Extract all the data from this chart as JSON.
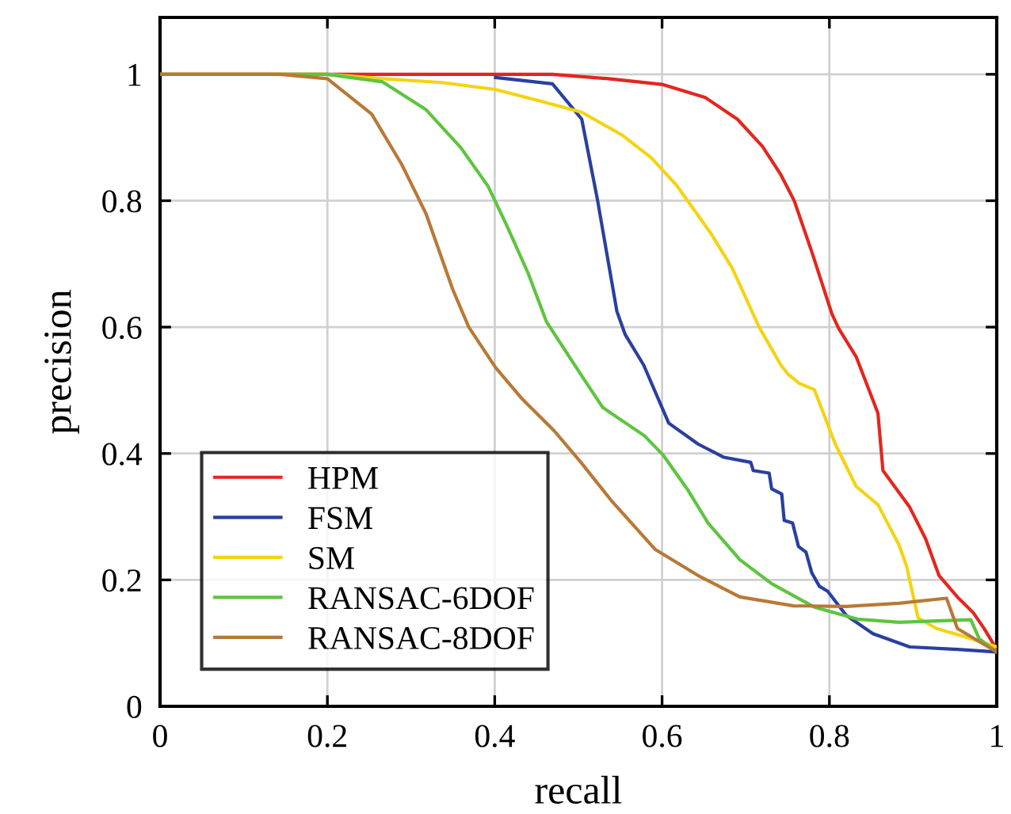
{
  "chart_data": {
    "type": "line",
    "xlabel": "recall",
    "ylabel": "precision",
    "xlim": [
      0,
      1
    ],
    "ylim": [
      0,
      1.09
    ],
    "xticks": [
      0,
      0.2,
      0.4,
      0.6,
      0.8,
      1
    ],
    "yticks": [
      0,
      0.2,
      0.4,
      0.6,
      0.8,
      1
    ],
    "grid": true,
    "legend": "bottom left",
    "marker": "none",
    "line_style": "solid",
    "series": [
      {
        "name": "HPM",
        "color": "#e3261f",
        "x": [
          0,
          0.2,
          0.469,
          0.536,
          0.6,
          0.652,
          0.69,
          0.72,
          0.742,
          0.758,
          0.78,
          0.803,
          0.811,
          0.832,
          0.858,
          0.864,
          0.896,
          0.915,
          0.931,
          0.953,
          0.972,
          0.985,
          1.0
        ],
        "values": [
          1,
          1,
          1.0,
          0.993,
          0.984,
          0.963,
          0.929,
          0.886,
          0.841,
          0.8,
          0.715,
          0.621,
          0.598,
          0.553,
          0.464,
          0.373,
          0.315,
          0.265,
          0.207,
          0.173,
          0.148,
          0.123,
          0.09
        ]
      },
      {
        "name": "FSM",
        "color": "#2a3fa0",
        "x": [
          0.401,
          0.469,
          0.504,
          0.523,
          0.546,
          0.556,
          0.578,
          0.608,
          0.643,
          0.674,
          0.706,
          0.709,
          0.728,
          0.731,
          0.743,
          0.746,
          0.756,
          0.763,
          0.772,
          0.779,
          0.788,
          0.798,
          0.82,
          0.852,
          0.896,
          0.953,
          1.0
        ],
        "values": [
          0.995,
          0.985,
          0.929,
          0.8,
          0.625,
          0.588,
          0.54,
          0.448,
          0.415,
          0.394,
          0.386,
          0.373,
          0.369,
          0.344,
          0.336,
          0.294,
          0.29,
          0.253,
          0.244,
          0.211,
          0.19,
          0.182,
          0.144,
          0.115,
          0.094,
          0.09,
          0.086
        ]
      },
      {
        "name": "SM",
        "color": "#f5d312",
        "x": [
          0,
          0.2,
          0.266,
          0.337,
          0.401,
          0.453,
          0.504,
          0.552,
          0.587,
          0.617,
          0.658,
          0.684,
          0.716,
          0.742,
          0.751,
          0.764,
          0.782,
          0.807,
          0.832,
          0.858,
          0.883,
          0.892,
          0.906,
          0.928,
          0.96,
          1.0
        ],
        "values": [
          1,
          1,
          0.993,
          0.987,
          0.976,
          0.958,
          0.94,
          0.904,
          0.868,
          0.825,
          0.749,
          0.693,
          0.6,
          0.54,
          0.525,
          0.511,
          0.501,
          0.415,
          0.348,
          0.319,
          0.256,
          0.223,
          0.14,
          0.123,
          0.111,
          0.094
        ]
      },
      {
        "name": "RANSAC-6DOF",
        "color": "#5ec43f",
        "x": [
          0,
          0.2,
          0.266,
          0.318,
          0.36,
          0.392,
          0.414,
          0.44,
          0.462,
          0.504,
          0.529,
          0.579,
          0.601,
          0.63,
          0.655,
          0.693,
          0.731,
          0.782,
          0.833,
          0.883,
          0.969,
          0.979,
          1.0
        ],
        "values": [
          1,
          1,
          0.988,
          0.944,
          0.883,
          0.823,
          0.762,
          0.685,
          0.608,
          0.523,
          0.473,
          0.428,
          0.398,
          0.344,
          0.29,
          0.232,
          0.194,
          0.157,
          0.138,
          0.133,
          0.137,
          0.107,
          0.086
        ]
      },
      {
        "name": "RANSAC-8DOF",
        "color": "#b87936",
        "x": [
          0,
          0.144,
          0.2,
          0.253,
          0.289,
          0.318,
          0.35,
          0.369,
          0.401,
          0.433,
          0.471,
          0.503,
          0.541,
          0.592,
          0.643,
          0.693,
          0.757,
          0.82,
          0.883,
          0.94,
          0.953,
          1.0
        ],
        "values": [
          1,
          1,
          0.993,
          0.937,
          0.857,
          0.779,
          0.659,
          0.6,
          0.536,
          0.486,
          0.436,
          0.386,
          0.323,
          0.248,
          0.207,
          0.173,
          0.159,
          0.158,
          0.163,
          0.171,
          0.123,
          0.086
        ]
      }
    ]
  }
}
